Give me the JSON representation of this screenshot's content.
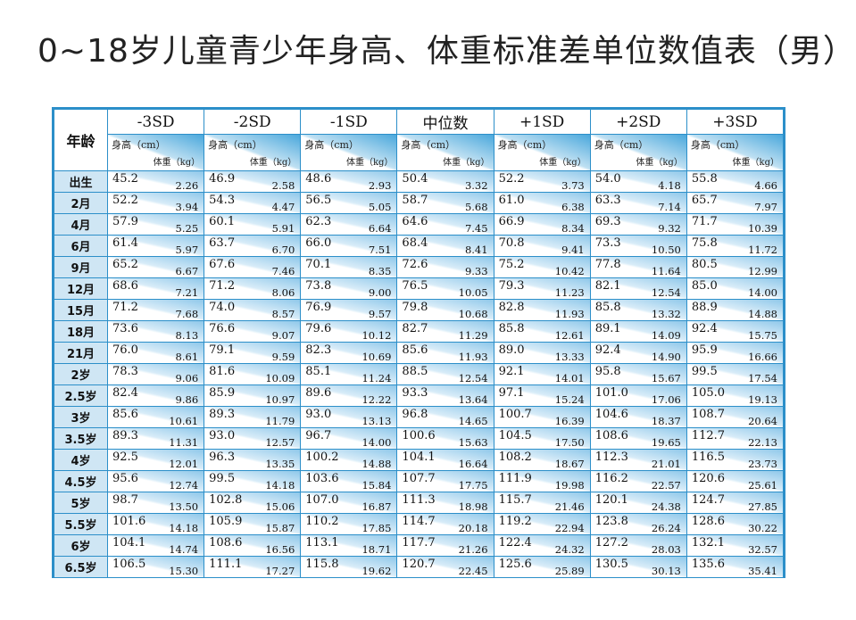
{
  "title": "0~18岁儿童青少年身高、体重标准差单位数值表（男）",
  "header": {
    "age_label": "年龄",
    "height_unit": "身高（cm）",
    "weight_unit": "体重（kg）",
    "sd_columns": [
      "-3SD",
      "-2SD",
      "-1SD",
      "中位数",
      "+1SD",
      "+2SD",
      "+3SD"
    ]
  },
  "rows": [
    {
      "age": "出生",
      "values": [
        [
          "45.2",
          "2.26"
        ],
        [
          "46.9",
          "2.58"
        ],
        [
          "48.6",
          "2.93"
        ],
        [
          "50.4",
          "3.32"
        ],
        [
          "52.2",
          "3.73"
        ],
        [
          "54.0",
          "4.18"
        ],
        [
          "55.8",
          "4.66"
        ]
      ]
    },
    {
      "age": "2月",
      "values": [
        [
          "52.2",
          "3.94"
        ],
        [
          "54.3",
          "4.47"
        ],
        [
          "56.5",
          "5.05"
        ],
        [
          "58.7",
          "5.68"
        ],
        [
          "61.0",
          "6.38"
        ],
        [
          "63.3",
          "7.14"
        ],
        [
          "65.7",
          "7.97"
        ]
      ]
    },
    {
      "age": "4月",
      "values": [
        [
          "57.9",
          "5.25"
        ],
        [
          "60.1",
          "5.91"
        ],
        [
          "62.3",
          "6.64"
        ],
        [
          "64.6",
          "7.45"
        ],
        [
          "66.9",
          "8.34"
        ],
        [
          "69.3",
          "9.32"
        ],
        [
          "71.7",
          "10.39"
        ]
      ]
    },
    {
      "age": "6月",
      "values": [
        [
          "61.4",
          "5.97"
        ],
        [
          "63.7",
          "6.70"
        ],
        [
          "66.0",
          "7.51"
        ],
        [
          "68.4",
          "8.41"
        ],
        [
          "70.8",
          "9.41"
        ],
        [
          "73.3",
          "10.50"
        ],
        [
          "75.8",
          "11.72"
        ]
      ]
    },
    {
      "age": "9月",
      "values": [
        [
          "65.2",
          "6.67"
        ],
        [
          "67.6",
          "7.46"
        ],
        [
          "70.1",
          "8.35"
        ],
        [
          "72.6",
          "9.33"
        ],
        [
          "75.2",
          "10.42"
        ],
        [
          "77.8",
          "11.64"
        ],
        [
          "80.5",
          "12.99"
        ]
      ]
    },
    {
      "age": "12月",
      "values": [
        [
          "68.6",
          "7.21"
        ],
        [
          "71.2",
          "8.06"
        ],
        [
          "73.8",
          "9.00"
        ],
        [
          "76.5",
          "10.05"
        ],
        [
          "79.3",
          "11.23"
        ],
        [
          "82.1",
          "12.54"
        ],
        [
          "85.0",
          "14.00"
        ]
      ]
    },
    {
      "age": "15月",
      "values": [
        [
          "71.2",
          "7.68"
        ],
        [
          "74.0",
          "8.57"
        ],
        [
          "76.9",
          "9.57"
        ],
        [
          "79.8",
          "10.68"
        ],
        [
          "82.8",
          "11.93"
        ],
        [
          "85.8",
          "13.32"
        ],
        [
          "88.9",
          "14.88"
        ]
      ]
    },
    {
      "age": "18月",
      "values": [
        [
          "73.6",
          "8.13"
        ],
        [
          "76.6",
          "9.07"
        ],
        [
          "79.6",
          "10.12"
        ],
        [
          "82.7",
          "11.29"
        ],
        [
          "85.8",
          "12.61"
        ],
        [
          "89.1",
          "14.09"
        ],
        [
          "92.4",
          "15.75"
        ]
      ]
    },
    {
      "age": "21月",
      "values": [
        [
          "76.0",
          "8.61"
        ],
        [
          "79.1",
          "9.59"
        ],
        [
          "82.3",
          "10.69"
        ],
        [
          "85.6",
          "11.93"
        ],
        [
          "89.0",
          "13.33"
        ],
        [
          "92.4",
          "14.90"
        ],
        [
          "95.9",
          "16.66"
        ]
      ]
    },
    {
      "age": "2岁",
      "values": [
        [
          "78.3",
          "9.06"
        ],
        [
          "81.6",
          "10.09"
        ],
        [
          "85.1",
          "11.24"
        ],
        [
          "88.5",
          "12.54"
        ],
        [
          "92.1",
          "14.01"
        ],
        [
          "95.8",
          "15.67"
        ],
        [
          "99.5",
          "17.54"
        ]
      ]
    },
    {
      "age": "2.5岁",
      "values": [
        [
          "82.4",
          "9.86"
        ],
        [
          "85.9",
          "10.97"
        ],
        [
          "89.6",
          "12.22"
        ],
        [
          "93.3",
          "13.64"
        ],
        [
          "97.1",
          "15.24"
        ],
        [
          "101.0",
          "17.06"
        ],
        [
          "105.0",
          "19.13"
        ]
      ]
    },
    {
      "age": "3岁",
      "values": [
        [
          "85.6",
          "10.61"
        ],
        [
          "89.3",
          "11.79"
        ],
        [
          "93.0",
          "13.13"
        ],
        [
          "96.8",
          "14.65"
        ],
        [
          "100.7",
          "16.39"
        ],
        [
          "104.6",
          "18.37"
        ],
        [
          "108.7",
          "20.64"
        ]
      ]
    },
    {
      "age": "3.5岁",
      "values": [
        [
          "89.3",
          "11.31"
        ],
        [
          "93.0",
          "12.57"
        ],
        [
          "96.7",
          "14.00"
        ],
        [
          "100.6",
          "15.63"
        ],
        [
          "104.5",
          "17.50"
        ],
        [
          "108.6",
          "19.65"
        ],
        [
          "112.7",
          "22.13"
        ]
      ]
    },
    {
      "age": "4岁",
      "values": [
        [
          "92.5",
          "12.01"
        ],
        [
          "96.3",
          "13.35"
        ],
        [
          "100.2",
          "14.88"
        ],
        [
          "104.1",
          "16.64"
        ],
        [
          "108.2",
          "18.67"
        ],
        [
          "112.3",
          "21.01"
        ],
        [
          "116.5",
          "23.73"
        ]
      ]
    },
    {
      "age": "4.5岁",
      "values": [
        [
          "95.6",
          "12.74"
        ],
        [
          "99.5",
          "14.18"
        ],
        [
          "103.6",
          "15.84"
        ],
        [
          "107.7",
          "17.75"
        ],
        [
          "111.9",
          "19.98"
        ],
        [
          "116.2",
          "22.57"
        ],
        [
          "120.6",
          "25.61"
        ]
      ]
    },
    {
      "age": "5岁",
      "values": [
        [
          "98.7",
          "13.50"
        ],
        [
          "102.8",
          "15.06"
        ],
        [
          "107.0",
          "16.87"
        ],
        [
          "111.3",
          "18.98"
        ],
        [
          "115.7",
          "21.46"
        ],
        [
          "120.1",
          "24.38"
        ],
        [
          "124.7",
          "27.85"
        ]
      ]
    },
    {
      "age": "5.5岁",
      "values": [
        [
          "101.6",
          "14.18"
        ],
        [
          "105.9",
          "15.87"
        ],
        [
          "110.2",
          "17.85"
        ],
        [
          "114.7",
          "20.18"
        ],
        [
          "119.2",
          "22.94"
        ],
        [
          "123.8",
          "26.24"
        ],
        [
          "128.6",
          "30.22"
        ]
      ]
    },
    {
      "age": "6岁",
      "values": [
        [
          "104.1",
          "14.74"
        ],
        [
          "108.6",
          "16.56"
        ],
        [
          "113.1",
          "18.71"
        ],
        [
          "117.7",
          "21.26"
        ],
        [
          "122.4",
          "24.32"
        ],
        [
          "127.2",
          "28.03"
        ],
        [
          "132.1",
          "32.57"
        ]
      ]
    },
    {
      "age": "6.5岁",
      "values": [
        [
          "106.5",
          "15.30"
        ],
        [
          "111.1",
          "17.27"
        ],
        [
          "115.8",
          "19.62"
        ],
        [
          "120.7",
          "22.45"
        ],
        [
          "125.6",
          "25.89"
        ],
        [
          "130.5",
          "30.13"
        ],
        [
          "135.6",
          "35.41"
        ]
      ]
    }
  ]
}
